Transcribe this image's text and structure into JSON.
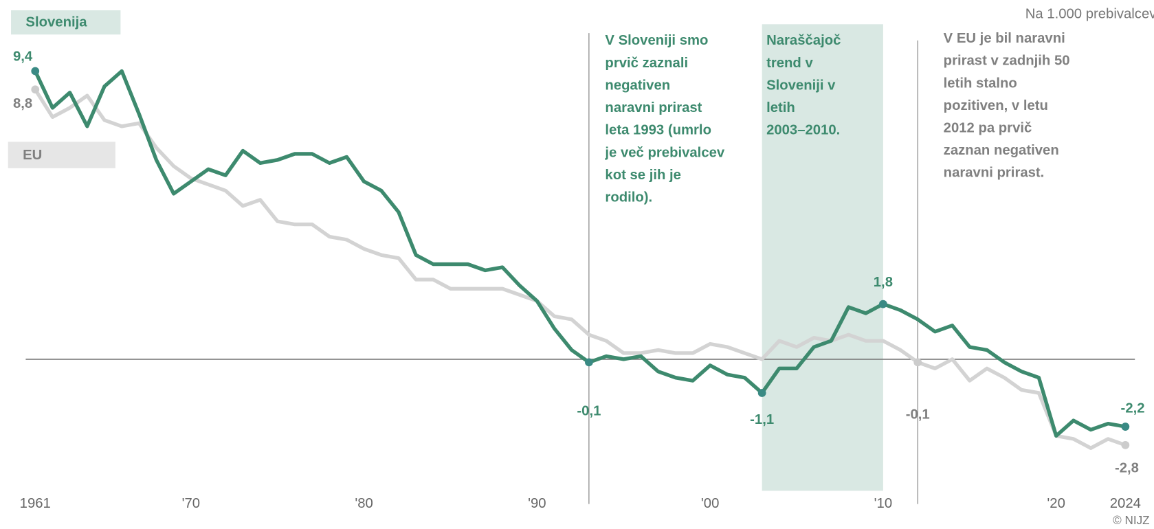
{
  "chart_data": {
    "type": "line",
    "y_label": "Na 1.000 prebivalcev",
    "source": "© NIJZ",
    "x": [
      1961,
      1962,
      1963,
      1964,
      1965,
      1966,
      1967,
      1968,
      1969,
      1970,
      1971,
      1972,
      1973,
      1974,
      1975,
      1976,
      1977,
      1978,
      1979,
      1980,
      1981,
      1982,
      1983,
      1984,
      1985,
      1986,
      1987,
      1988,
      1989,
      1990,
      1991,
      1992,
      1993,
      1994,
      1995,
      1996,
      1997,
      1998,
      1999,
      2000,
      2001,
      2002,
      2003,
      2004,
      2005,
      2006,
      2007,
      2008,
      2009,
      2010,
      2011,
      2012,
      2013,
      2014,
      2015,
      2016,
      2017,
      2018,
      2019,
      2020,
      2021,
      2022,
      2023,
      2024
    ],
    "xlim": [
      1960.45,
      2024.55
    ],
    "xticks": [
      1961,
      {
        "value": 1970,
        "label": "'70"
      },
      {
        "value": 1980,
        "label": "'80"
      },
      {
        "value": 1990,
        "label": "'90"
      },
      {
        "value": 2000,
        "label": "'00"
      },
      {
        "value": 2010,
        "label": "'10"
      },
      {
        "value": 2020,
        "label": "'20"
      },
      2024
    ],
    "ylim": [
      -4.1,
      11
    ],
    "series": [
      {
        "name": "EU",
        "color": "#d3d3d3",
        "label_color": "#808080",
        "values": [
          8.8,
          7.9,
          8.2,
          8.6,
          7.8,
          7.6,
          7.7,
          6.9,
          6.3,
          5.9,
          5.7,
          5.5,
          5.0,
          5.2,
          4.5,
          4.4,
          4.4,
          4.0,
          3.9,
          3.6,
          3.4,
          3.3,
          2.6,
          2.6,
          2.3,
          2.3,
          2.3,
          2.3,
          2.1,
          1.9,
          1.4,
          1.3,
          0.8,
          0.6,
          0.2,
          0.2,
          0.3,
          0.2,
          0.2,
          0.5,
          0.4,
          0.2,
          0.0,
          0.6,
          0.4,
          0.7,
          0.6,
          0.8,
          0.6,
          0.6,
          0.3,
          -0.1,
          -0.3,
          0.0,
          -0.7,
          -0.3,
          -0.6,
          -1.0,
          -1.1,
          -2.5,
          -2.6,
          -2.9,
          -2.6,
          -2.8
        ],
        "value_labels": [
          "8,8",
          null,
          null,
          null,
          null,
          null,
          null,
          null,
          null,
          null,
          null,
          null,
          null,
          null,
          null,
          null,
          null,
          null,
          null,
          null,
          null,
          null,
          null,
          null,
          null,
          null,
          null,
          null,
          null,
          null,
          null,
          null,
          null,
          null,
          null,
          null,
          null,
          null,
          null,
          null,
          null,
          null,
          null,
          null,
          null,
          null,
          null,
          null,
          null,
          null,
          null,
          "-0,1",
          null,
          null,
          null,
          null,
          null,
          null,
          null,
          null,
          null,
          null,
          null,
          "-2,8"
        ]
      },
      {
        "name": "Slovenija",
        "color": "#3d8a6e",
        "label_color": "#3d8a6e",
        "values": [
          9.4,
          8.2,
          8.7,
          7.6,
          8.9,
          9.4,
          8.0,
          6.5,
          5.4,
          5.8,
          6.2,
          6.0,
          6.8,
          6.4,
          6.5,
          6.7,
          6.7,
          6.4,
          6.6,
          5.8,
          5.5,
          4.8,
          3.4,
          3.1,
          3.1,
          3.1,
          2.9,
          3.0,
          2.4,
          1.9,
          1.0,
          0.3,
          -0.1,
          0.1,
          0.0,
          0.1,
          -0.4,
          -0.6,
          -0.7,
          -0.2,
          -0.5,
          -0.6,
          -1.1,
          -0.3,
          -0.3,
          0.4,
          0.6,
          1.7,
          1.5,
          1.8,
          1.6,
          1.3,
          0.9,
          1.1,
          0.4,
          0.3,
          -0.1,
          -0.4,
          -0.6,
          -2.5,
          -2.0,
          -2.3,
          -2.1,
          -2.2
        ],
        "value_labels": [
          "9,4",
          null,
          null,
          null,
          null,
          null,
          null,
          null,
          null,
          null,
          null,
          null,
          null,
          null,
          null,
          null,
          null,
          null,
          null,
          null,
          null,
          null,
          null,
          null,
          null,
          null,
          null,
          null,
          null,
          null,
          null,
          null,
          "-0,1",
          null,
          null,
          null,
          null,
          null,
          null,
          null,
          null,
          null,
          "-1,1",
          null,
          null,
          null,
          null,
          null,
          null,
          "1,8",
          null,
          null,
          null,
          null,
          null,
          null,
          null,
          null,
          null,
          null,
          null,
          null,
          null,
          "-2,2"
        ]
      }
    ],
    "highlight": {
      "from": 2003,
      "to": 2010,
      "color": "#d9e8e3",
      "text_color": "#3d8a6e",
      "text": [
        "Naraščajoč",
        "trend v",
        "Sloveniji v",
        "letih",
        "2003–2010."
      ]
    },
    "annotations": [
      {
        "x": 1993,
        "color": "#3d8a6e",
        "text": [
          "V Sloveniji smo",
          "prvič zaznali",
          "negativen",
          "naravni prirast",
          "leta 1993 (umrlo",
          "je več prebivalcev",
          "kot se jih je",
          "rodilo)."
        ]
      },
      {
        "x": 2012,
        "color": "#808080",
        "text": [
          "V EU je bil naravni",
          "prirast v zadnjih 50",
          "letih stalno",
          "pozitiven, v letu",
          "2012 pa prvič",
          "zaznan negativen",
          "naravni prirast."
        ]
      }
    ]
  }
}
